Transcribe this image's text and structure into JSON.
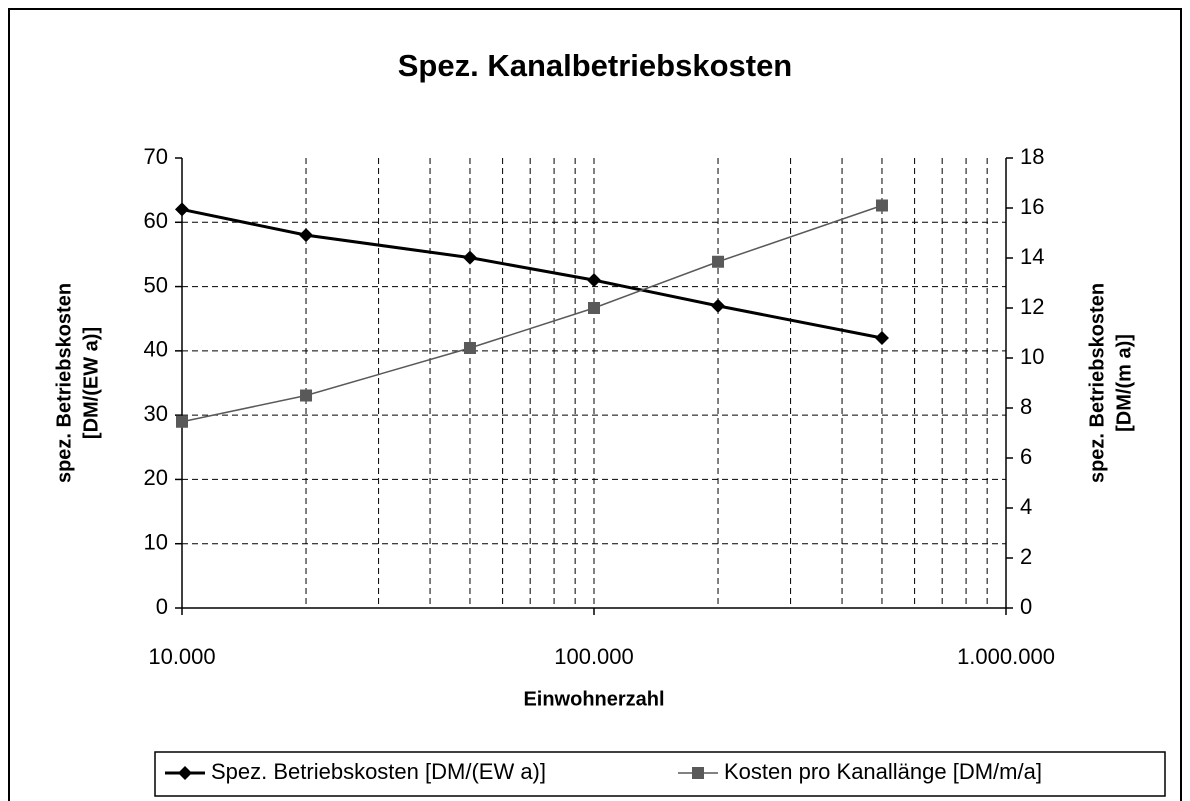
{
  "chart_data": {
    "type": "line",
    "title": "Spez. Kanalbetriebskosten",
    "xlabel": "Einwohnerzahl",
    "ylabel": [
      "spez. Betriebskosten",
      "[DM/(EW a)]"
    ],
    "y2label": [
      "spez. Betriebskosten",
      "[DM/(m a)]"
    ],
    "x": [
      10000,
      20000,
      50000,
      100000,
      200000,
      500000
    ],
    "xlog": true,
    "xlim": [
      10000,
      1000000
    ],
    "xticks": [
      {
        "value": 10000,
        "label": "10.000"
      },
      {
        "value": 100000,
        "label": "100.000"
      },
      {
        "value": 1000000,
        "label": "1.000.000"
      }
    ],
    "xminorticks": [
      20000,
      30000,
      40000,
      50000,
      60000,
      70000,
      80000,
      90000,
      200000,
      300000,
      400000,
      500000,
      600000,
      700000,
      800000,
      900000
    ],
    "ylim": [
      0,
      70
    ],
    "yticks": [
      0,
      10,
      20,
      30,
      40,
      50,
      60,
      70
    ],
    "y2lim": [
      0,
      18
    ],
    "y2ticks": [
      0,
      2,
      4,
      6,
      8,
      10,
      12,
      14,
      16,
      18
    ],
    "grid": true,
    "legend": "bottom",
    "series": [
      {
        "name": "Spez. Betriebskosten [DM/(EW a)]",
        "color": "#000000",
        "marker": "diamond",
        "values": [
          62,
          58,
          54.5,
          51,
          47,
          42
        ]
      },
      {
        "name": "Kosten pro Kanallänge [DM/m/a]",
        "color": "#595959",
        "marker": "square",
        "axis": "y2",
        "values": [
          7.45,
          8.5,
          10.4,
          12.0,
          13.85,
          16.1
        ]
      }
    ]
  }
}
